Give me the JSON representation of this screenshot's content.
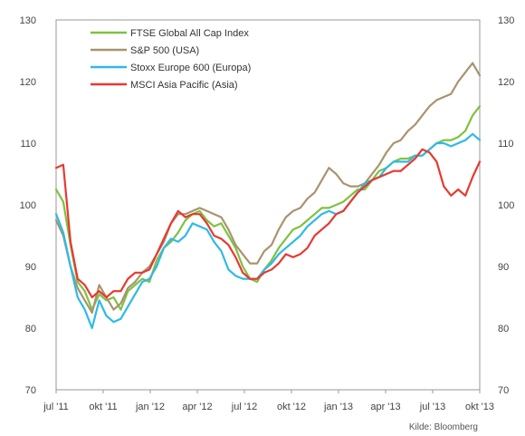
{
  "chart_data": {
    "type": "line",
    "title": "",
    "xlabel": "",
    "ylabel": "",
    "ylim": [
      70,
      130
    ],
    "yticks": [
      70,
      80,
      90,
      100,
      110,
      120,
      130
    ],
    "x_tick_labels": [
      "jul '11",
      "okt '11",
      "jan '12",
      "apr '12",
      "jul '12",
      "okt '12",
      "jan '13",
      "apr '13",
      "jul '13",
      "okt '13"
    ],
    "grid": false,
    "legend_position": "top-left",
    "source": "Kilde: Bloomberg",
    "series": [
      {
        "name": "FTSE Global All Cap Index",
        "color": "#7dc241",
        "values": [
          102.5,
          100.5,
          93.5,
          87.5,
          86,
          83,
          85.5,
          84.5,
          85,
          83,
          86,
          87,
          88,
          87.5,
          91,
          93,
          94,
          95.5,
          97.5,
          98.5,
          99,
          97.5,
          96.5,
          97,
          95,
          93,
          90,
          88,
          87.5,
          89.5,
          91,
          93,
          94.5,
          96,
          96.5,
          97.5,
          98.5,
          99.5,
          99.5,
          100,
          100.5,
          101.5,
          102.5,
          102.5,
          104,
          105.5,
          106,
          107,
          107.5,
          107.5,
          108,
          108,
          109,
          110,
          110.5,
          110.5,
          111,
          112,
          114.5,
          116
        ]
      },
      {
        "name": "S&P 500 (USA)",
        "color": "#a8946e",
        "values": [
          97.5,
          95,
          90,
          86.5,
          84.5,
          82.5,
          87,
          85,
          83,
          84,
          86.5,
          87.5,
          89,
          90,
          92,
          94,
          97,
          98.5,
          98.5,
          99,
          99.5,
          99,
          98.5,
          98,
          96,
          93.5,
          92,
          90.5,
          90.5,
          92.5,
          93.5,
          96,
          98,
          99,
          99.5,
          101,
          102,
          104,
          106,
          105,
          103.5,
          103,
          103,
          103.5,
          105,
          106.5,
          108.5,
          110,
          110.5,
          112,
          113,
          114.5,
          116,
          117,
          117.5,
          118,
          120,
          121.5,
          123,
          121
        ]
      },
      {
        "name": "Stoxx Europe 600 (Europa)",
        "color": "#2fb9e8",
        "values": [
          98.5,
          95.5,
          90,
          85,
          83,
          80,
          84.5,
          82,
          81,
          81.5,
          83.5,
          85.5,
          87.5,
          88,
          90,
          93,
          94.5,
          94,
          95,
          97,
          96.5,
          96,
          94,
          92.5,
          89.5,
          88.5,
          88,
          88,
          88,
          89.5,
          90.5,
          92,
          93,
          94,
          95,
          96.5,
          97.5,
          98.5,
          99,
          98.5,
          99,
          100.5,
          102,
          103.5,
          104,
          104.5,
          106,
          107,
          107,
          107,
          108,
          108,
          109,
          110,
          110,
          109.5,
          110,
          110.5,
          111.5,
          110.5
        ]
      },
      {
        "name": "MSCI Asia Pacific (Asia)",
        "color": "#e8392f",
        "values": [
          106,
          106.5,
          94,
          88,
          87,
          85,
          86,
          85,
          86,
          86,
          88,
          89,
          89,
          89.5,
          92,
          94.5,
          97,
          99,
          98,
          98.5,
          98.5,
          97,
          95,
          94.5,
          93.5,
          91.5,
          89,
          88,
          88,
          89,
          89.5,
          90.5,
          92,
          91.5,
          92,
          93,
          95,
          96,
          97,
          98.5,
          99,
          100.5,
          102,
          103,
          104,
          104.5,
          105,
          105.5,
          105.5,
          106.5,
          107.5,
          109,
          108.5,
          107,
          103,
          101.5,
          102.5,
          101.5,
          104.5,
          107
        ]
      }
    ]
  }
}
